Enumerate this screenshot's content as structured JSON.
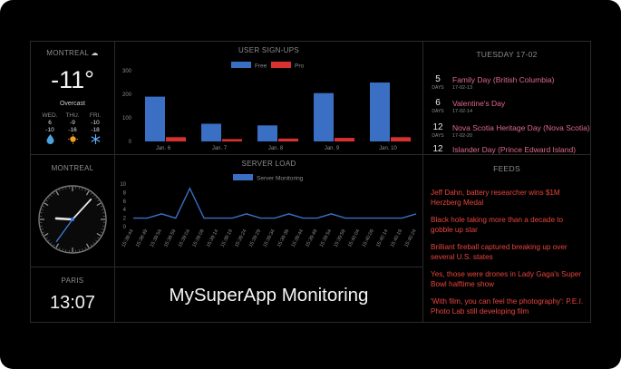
{
  "weather": {
    "city": "MONTREAL",
    "icon": "cloud-icon",
    "temp": "-11°",
    "condition": "Overcast",
    "forecast": [
      {
        "day": "WED.",
        "high": "6",
        "low": "-10",
        "icon": "drop-icon",
        "color": "#4aa3df"
      },
      {
        "day": "THU.",
        "high": "-9",
        "low": "-16",
        "icon": "sun-icon",
        "color": "#f0a020"
      },
      {
        "day": "FRI.",
        "high": "-10",
        "low": "-18",
        "icon": "snowflake-icon",
        "color": "#6ab0ff"
      }
    ]
  },
  "signups": {
    "title": "USER SIGN-UPS",
    "chart_data": {
      "type": "bar",
      "categories": [
        "Jan. 6",
        "Jan. 7",
        "Jan. 8",
        "Jan. 9",
        "Jan. 10"
      ],
      "series": [
        {
          "name": "Free",
          "color": "#3a6fc4",
          "values": [
            190,
            75,
            68,
            205,
            250
          ]
        },
        {
          "name": "Pro",
          "color": "#d93030",
          "values": [
            18,
            10,
            12,
            15,
            18
          ]
        }
      ],
      "ylim": [
        0,
        300
      ],
      "yticks": [
        "0",
        "100",
        "200",
        "300"
      ],
      "legend": "top-center"
    }
  },
  "calendar": {
    "title": "TUESDAY 17-02",
    "holidays": [
      {
        "num": "5",
        "unit": "DAYS",
        "name": "Family Day (British Columbia)",
        "date": "17-02-13"
      },
      {
        "num": "6",
        "unit": "DAYS",
        "name": "Valentine's Day",
        "date": "17-02-14"
      },
      {
        "num": "12",
        "unit": "DAYS",
        "name": "Nova Scotia Heritage Day (Nova Scotia)",
        "date": "17-02-20"
      },
      {
        "num": "12",
        "unit": "",
        "name": "Islander Day (Prince Edward Island)",
        "date": ""
      }
    ]
  },
  "clock_montreal": {
    "city": "MONTREAL",
    "time": {
      "hour": 9,
      "minute": 7,
      "second": 6
    }
  },
  "server_load": {
    "title": "SERVER LOAD",
    "chart_data": {
      "type": "line",
      "series": [
        {
          "name": "Server Monitoring",
          "color": "#3a6fc4"
        }
      ],
      "x": [
        "15:38:44",
        "15:38:49",
        "15:38:54",
        "15:38:59",
        "15:39:04",
        "15:39:09",
        "15:39:14",
        "15:39:19",
        "15:39:24",
        "15:39:29",
        "15:39:34",
        "15:39:39",
        "15:39:44",
        "15:39:49",
        "15:39:54",
        "15:39:59",
        "15:40:04",
        "15:40:09",
        "15:40:14",
        "15:40:19",
        "15:40:24"
      ],
      "values": [
        2,
        2,
        3,
        2,
        9,
        2,
        2,
        2,
        3,
        2,
        2,
        3,
        2,
        2,
        3,
        2,
        2,
        2,
        2,
        2,
        3
      ],
      "ylim": [
        0,
        10
      ],
      "yticks": [
        "0",
        "2",
        "4",
        "6",
        "8",
        "10"
      ],
      "legend": "top-center"
    }
  },
  "feeds": {
    "title": "FEEDS",
    "items": [
      "Jeff Dahn, battery researcher wins $1M Herzberg Medal",
      "Black hole taking more than a decade to gobble up star",
      "Brilliant fireball captured breaking up over several U.S. states",
      "Yes, those were drones in Lady Gaga's Super Bowl halftime show",
      "'With film, you can feel the photography': P.E.I. Photo Lab still developing film"
    ]
  },
  "paris": {
    "city": "PARIS",
    "time": "13:07"
  },
  "app": {
    "title": "MySuperApp Monitoring"
  }
}
